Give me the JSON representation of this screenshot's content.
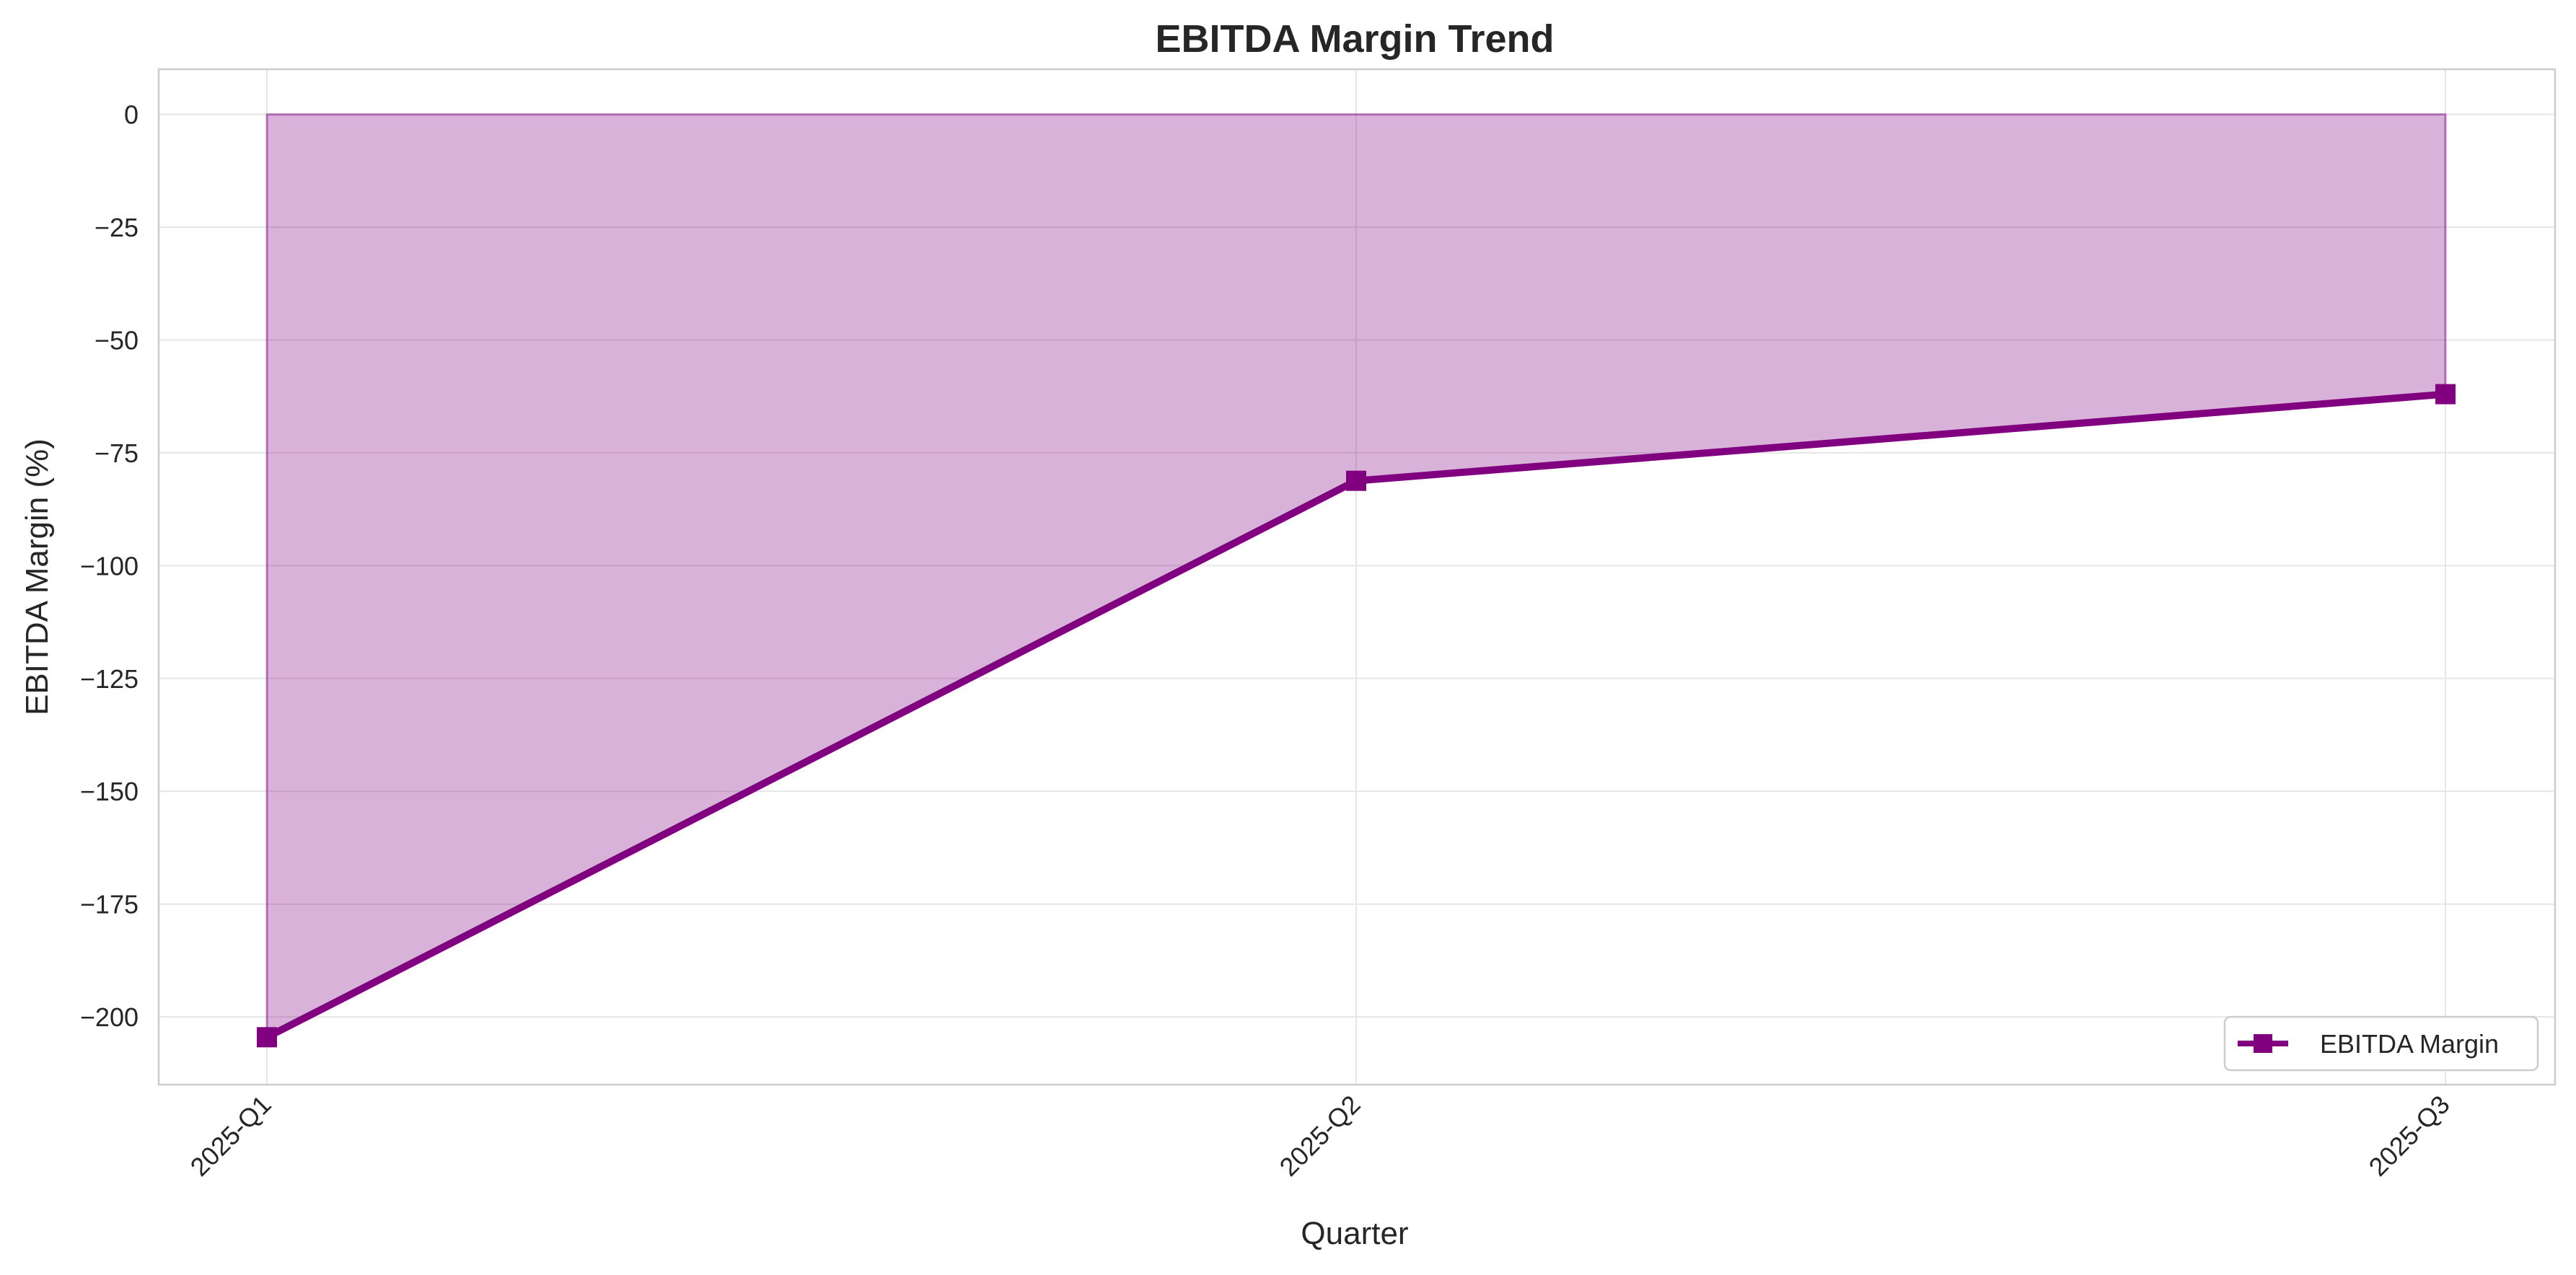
{
  "chart_data": {
    "type": "area",
    "title": "EBITDA Margin Trend",
    "xlabel": "Quarter",
    "ylabel": "EBITDA Margin (%)",
    "categories": [
      "2025-Q1",
      "2025-Q2",
      "2025-Q3"
    ],
    "series": [
      {
        "name": "EBITDA Margin",
        "values": [
          -204.5,
          -81.2,
          -62.0
        ],
        "marker": "square"
      }
    ],
    "fill_baseline": 0,
    "ylim": [
      -215,
      10
    ],
    "yticks": [
      0,
      -25,
      -50,
      -75,
      -100,
      -125,
      -150,
      -175,
      -200
    ],
    "ytick_labels": [
      "0",
      "−25",
      "−50",
      "−75",
      "−100",
      "−125",
      "−150",
      "−175",
      "−200"
    ],
    "grid": true,
    "legend_position": "lower-right",
    "colors": {
      "line": "#800080",
      "fill": "#800080",
      "grid": "#e6e6e6",
      "spine": "#cccccc",
      "text": "#262626"
    }
  }
}
